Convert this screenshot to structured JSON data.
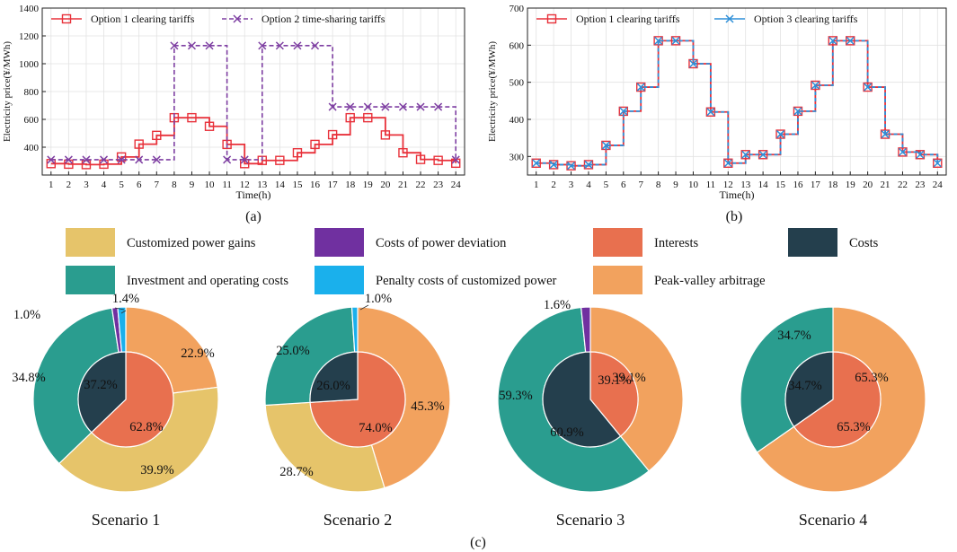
{
  "figure": {
    "panel_a_label": "(a)",
    "panel_b_label": "(b)",
    "panel_c_label": "(c)"
  },
  "colors": {
    "option1": "#e8313a",
    "option2": "#7e3fa2",
    "option3": "#2e8fd8",
    "customized_power_gains": "#e6c46a",
    "costs_of_power_deviation": "#7030a0",
    "interests": "#e8704f",
    "costs": "#243f4d",
    "investment_operating": "#2a9d8f",
    "penalty_costs": "#1ab0ec",
    "peak_valley": "#f2a25e"
  },
  "chart_data": [
    {
      "type": "line",
      "step": true,
      "panel": "(a)",
      "xlabel": "Time(h)",
      "ylabel": "Electricity price(¥/MWh)",
      "x": [
        1,
        2,
        3,
        4,
        5,
        6,
        7,
        8,
        9,
        10,
        11,
        12,
        13,
        14,
        15,
        16,
        17,
        18,
        19,
        20,
        21,
        22,
        23,
        24
      ],
      "ylim": [
        200,
        1400
      ],
      "yticks": [
        400,
        600,
        800,
        1000,
        1200,
        1400
      ],
      "grid": true,
      "series": [
        {
          "name": "Option 1 clearing tariffs",
          "marker": "square",
          "color_key": "option1",
          "values": [
            282,
            278,
            275,
            278,
            330,
            422,
            485,
            612,
            612,
            550,
            420,
            282,
            305,
            305,
            360,
            420,
            490,
            612,
            612,
            488,
            360,
            312,
            305,
            285
          ]
        },
        {
          "name": "Option 2 time-sharing tariffs",
          "marker": "x",
          "dashed": true,
          "color_key": "option2",
          "values": [
            310,
            310,
            310,
            310,
            310,
            310,
            310,
            1130,
            1130,
            1130,
            310,
            310,
            1130,
            1130,
            1130,
            1130,
            690,
            690,
            690,
            690,
            690,
            690,
            690,
            310
          ]
        }
      ]
    },
    {
      "type": "line",
      "step": true,
      "panel": "(b)",
      "xlabel": "Time(h)",
      "ylabel": "Electricity price(¥/MWh)",
      "x": [
        1,
        2,
        3,
        4,
        5,
        6,
        7,
        8,
        9,
        10,
        11,
        12,
        13,
        14,
        15,
        16,
        17,
        18,
        19,
        20,
        21,
        22,
        23,
        24
      ],
      "ylim": [
        250,
        700
      ],
      "yticks": [
        300,
        400,
        500,
        600,
        700
      ],
      "grid": true,
      "series": [
        {
          "name": "Option 1 clearing tariffs",
          "marker": "square",
          "color_key": "option1",
          "values": [
            282,
            278,
            275,
            278,
            330,
            422,
            487,
            612,
            612,
            550,
            420,
            282,
            305,
            305,
            360,
            422,
            492,
            612,
            612,
            487,
            360,
            312,
            305,
            282
          ]
        },
        {
          "name": "Option 3 clearing tariffs",
          "marker": "x",
          "color_key": "option3",
          "values": [
            282,
            278,
            275,
            278,
            330,
            422,
            487,
            612,
            612,
            550,
            420,
            282,
            305,
            305,
            360,
            422,
            492,
            612,
            612,
            487,
            360,
            312,
            305,
            282
          ]
        }
      ]
    },
    {
      "type": "pie",
      "donut": true,
      "panel": "(c)",
      "legend": [
        {
          "label": "Customized power gains",
          "color_key": "customized_power_gains"
        },
        {
          "label": "Costs of power deviation",
          "color_key": "costs_of_power_deviation"
        },
        {
          "label": "Interests",
          "color_key": "interests"
        },
        {
          "label": "Costs",
          "color_key": "costs"
        },
        {
          "label": "Investment and operating costs",
          "color_key": "investment_operating"
        },
        {
          "label": "Penalty costs of customized power",
          "color_key": "penalty_costs"
        },
        {
          "label": "Peak-valley arbitrage",
          "color_key": "peak_valley"
        }
      ],
      "scenarios": [
        {
          "title": "Scenario 1",
          "inner": [
            {
              "key": "interests",
              "value": 62.8,
              "label": "62.8%"
            },
            {
              "key": "costs",
              "value": 37.2,
              "label": "37.2%"
            }
          ],
          "outer": [
            {
              "key": "peak_valley",
              "value": 22.9,
              "label": "22.9%"
            },
            {
              "key": "customized_power_gains",
              "value": 39.9,
              "label": "39.9%"
            },
            {
              "key": "investment_operating",
              "value": 34.8,
              "label": "34.8%"
            },
            {
              "key": "costs_of_power_deviation",
              "value": 1.0,
              "label": "1.0%"
            },
            {
              "key": "penalty_costs",
              "value": 1.4,
              "label": "1.4%"
            }
          ]
        },
        {
          "title": "Scenario 2",
          "inner": [
            {
              "key": "interests",
              "value": 74.0,
              "label": "74.0%"
            },
            {
              "key": "costs",
              "value": 26.0,
              "label": "26.0%"
            }
          ],
          "outer": [
            {
              "key": "peak_valley",
              "value": 45.3,
              "label": "45.3%"
            },
            {
              "key": "customized_power_gains",
              "value": 28.7,
              "label": "28.7%"
            },
            {
              "key": "investment_operating",
              "value": 25.0,
              "label": "25.0%"
            },
            {
              "key": "penalty_costs",
              "value": 1.0,
              "label": "1.0%"
            }
          ]
        },
        {
          "title": "Scenario 3",
          "inner": [
            {
              "key": "interests",
              "value": 39.1,
              "label": "39.1%"
            },
            {
              "key": "costs",
              "value": 60.9,
              "label": "60.9%"
            }
          ],
          "outer": [
            {
              "key": "peak_valley",
              "value": 39.1,
              "label": "39.1%"
            },
            {
              "key": "investment_operating",
              "value": 59.3,
              "label": "59.3%"
            },
            {
              "key": "costs_of_power_deviation",
              "value": 1.6,
              "label": "1.6%"
            }
          ]
        },
        {
          "title": "Scenario 4",
          "inner": [
            {
              "key": "interests",
              "value": 65.3,
              "label": "65.3%"
            },
            {
              "key": "costs",
              "value": 34.7,
              "label": "34.7%"
            }
          ],
          "outer": [
            {
              "key": "peak_valley",
              "value": 65.3,
              "label": "65.3%"
            },
            {
              "key": "investment_operating",
              "value": 34.7,
              "label": "34.7%"
            }
          ]
        }
      ]
    }
  ]
}
